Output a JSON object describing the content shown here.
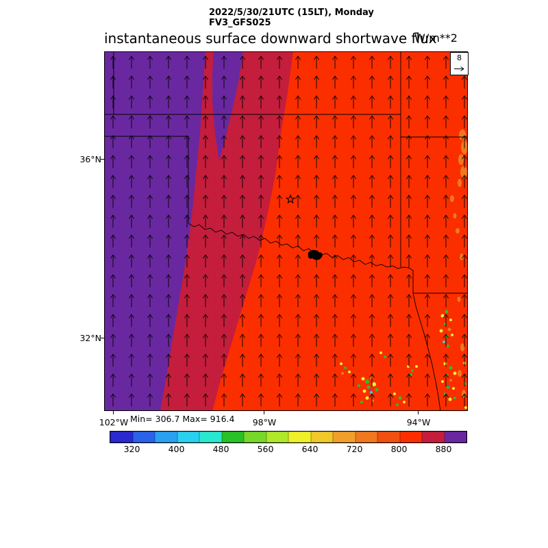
{
  "header": {
    "timestamp": "2022/5/30/21UTC (15LT), Monday",
    "model": "FV3_GFS025"
  },
  "title": {
    "text": "instantaneous surface downward shortwave flux",
    "units": "W/m**2"
  },
  "map": {
    "lat_labels": [
      "36°N",
      "32°N"
    ],
    "lon_labels": [
      "102°W",
      "98°W",
      "94°W"
    ],
    "stats_label": "Min= 306.7 Max= 916.4",
    "min": 306.7,
    "max": 916.4,
    "wind_reference_label": "8",
    "region_colors": {
      "purple": "#6A28A0",
      "crimson": "#C41E3C",
      "red": "#FB2E00"
    }
  },
  "colorbar": {
    "tick_labels": [
      "320",
      "400",
      "480",
      "560",
      "640",
      "720",
      "800",
      "880"
    ],
    "tick_values": [
      320,
      400,
      480,
      560,
      640,
      720,
      800,
      880
    ],
    "range": [
      280,
      920
    ],
    "colors": [
      "#2A2AD0",
      "#2A62E8",
      "#2AA0F0",
      "#2AD0F0",
      "#2AE8D0",
      "#2AC02A",
      "#78D82A",
      "#B0E82A",
      "#F0F02A",
      "#F0C82A",
      "#F0A02A",
      "#F07820",
      "#F05010",
      "#FB2E00",
      "#C41E3C",
      "#6A28A0"
    ]
  },
  "chart_data": {
    "type": "heatmap",
    "title": "instantaneous surface downward shortwave flux",
    "units": "W/m**2",
    "model": "FV3_GFS025",
    "valid_time": "2022/5/30/21UTC (15LT), Monday",
    "x_tick_labels": [
      "102°W",
      "98°W",
      "94°W"
    ],
    "y_tick_labels": [
      "36°N",
      "32°N"
    ],
    "value_min": 306.7,
    "value_max": 916.4,
    "wind_reference_value": 8,
    "colorbar_ticks": [
      320,
      400,
      480,
      560,
      640,
      720,
      800,
      880
    ],
    "colorbar_range": [
      280,
      920
    ],
    "legend_position": "bottom",
    "notes": "Filled contour map over Texas/Oklahoma region; values >880 (purple) in west, 840-880 (crimson) band, 800-840 (red) over most of domain, scattered 400-700 (green/yellow/orange) cloud speckles in southeast; uniform southerly wind vectors"
  }
}
